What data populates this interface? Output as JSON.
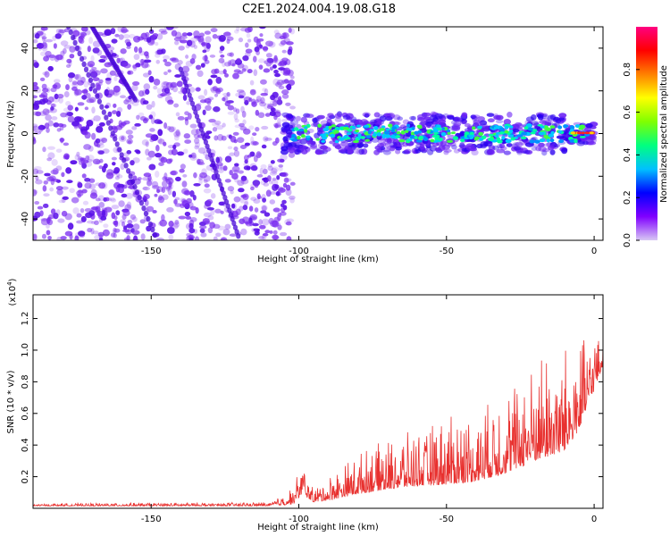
{
  "figure_title": "C2E1.2024.004.19.08.G18",
  "colors": {
    "snr_line": "#e8312f",
    "spectrogram_noise": "#7a2cf0",
    "spectrogram_core": "#00e8a0",
    "spectrogram_peak": "#ff2020",
    "colorbar_stops": [
      "#d8c8f4",
      "#8000ff",
      "#0000ff",
      "#00c0ff",
      "#00ff80",
      "#80ff00",
      "#ffff00",
      "#ff8000",
      "#ff0000",
      "#ff0080"
    ]
  },
  "chart_data": [
    {
      "id": "spectrogram",
      "type": "heatmap",
      "title": "",
      "xlabel": "Height of straight line (km)",
      "ylabel": "Frequency (Hz)",
      "xlim": [
        -190,
        3
      ],
      "ylim": [
        -50,
        50
      ],
      "xticks": [
        -150,
        -100,
        -50,
        0
      ],
      "yticks": [
        -40,
        -20,
        0,
        20,
        40
      ],
      "features": {
        "noise_region_x": [
          -190,
          -110
        ],
        "signal_band_x": [
          -105,
          0
        ],
        "signal_band_center_hz": 0,
        "signal_band_halfwidth_hz": 7
      },
      "colorbar": {
        "label": "Normalized spectral amplitude",
        "range": [
          0.0,
          1.0
        ],
        "ticks": [
          "0.0",
          "0.2",
          "0.4",
          "0.6",
          "0.8"
        ]
      }
    },
    {
      "id": "snr",
      "type": "line",
      "title": "",
      "xlabel": "Height of straight line (km)",
      "ylabel": "SNR (10 * v/v)",
      "y_multiplier_label": "(x10",
      "y_multiplier_exp": "4",
      "xlim": [
        -190,
        3
      ],
      "ylim": [
        0,
        13500
      ],
      "xticks": [
        -150,
        -100,
        -50,
        0
      ],
      "yticks": [
        {
          "value": 2000,
          "label": "0.2"
        },
        {
          "value": 4000,
          "label": "0.4"
        },
        {
          "value": 6000,
          "label": "0.6"
        },
        {
          "value": 8000,
          "label": "0.8"
        },
        {
          "value": 10000,
          "label": "1.0"
        },
        {
          "value": 12000,
          "label": "1.2"
        }
      ],
      "envelope": {
        "x": [
          -190,
          -110,
          -102,
          -99,
          -95,
          -90,
          -80,
          -70,
          -60,
          -50,
          -40,
          -30,
          -25,
          -20,
          -15,
          -10,
          -5,
          0,
          3
        ],
        "y_base": [
          150,
          150,
          250,
          900,
          400,
          500,
          900,
          1200,
          1400,
          1500,
          1700,
          2200,
          2600,
          3000,
          3300,
          3600,
          5000,
          7500,
          9000
        ],
        "y_amp": [
          150,
          250,
          1200,
          2200,
          800,
          1500,
          2600,
          3200,
          3600,
          4200,
          4600,
          5200,
          5600,
          6200,
          6800,
          6500,
          5500,
          3500,
          1500
        ]
      }
    }
  ]
}
